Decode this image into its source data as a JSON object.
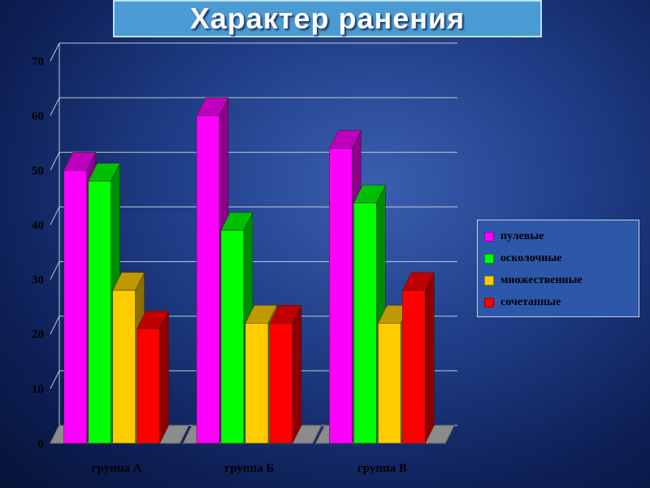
{
  "title": "Характер ранения",
  "chart_data": {
    "type": "bar",
    "title": "Характер ранения",
    "categories": [
      "группа А",
      "группа Б",
      "группа В"
    ],
    "series": [
      {
        "name": "пулевые",
        "values": [
          50,
          60,
          54
        ],
        "color": "#ff00ff"
      },
      {
        "name": "осколочные",
        "values": [
          48,
          39,
          44
        ],
        "color": "#00ff00"
      },
      {
        "name": "множественные",
        "values": [
          28,
          22,
          22
        ],
        "color": "#ffcc00"
      },
      {
        "name": "сочетанные",
        "values": [
          21,
          22,
          28
        ],
        "color": "#ff0000"
      }
    ],
    "ylim": [
      0,
      70
    ],
    "yticks": [
      "0",
      "10",
      "20",
      "30",
      "40",
      "50",
      "60",
      "70"
    ],
    "xlabel": "",
    "ylabel": "",
    "grid": true,
    "legend_position": "right"
  },
  "colors": {
    "floor": "#8c8c8c",
    "grid": "#c0c8d8"
  }
}
